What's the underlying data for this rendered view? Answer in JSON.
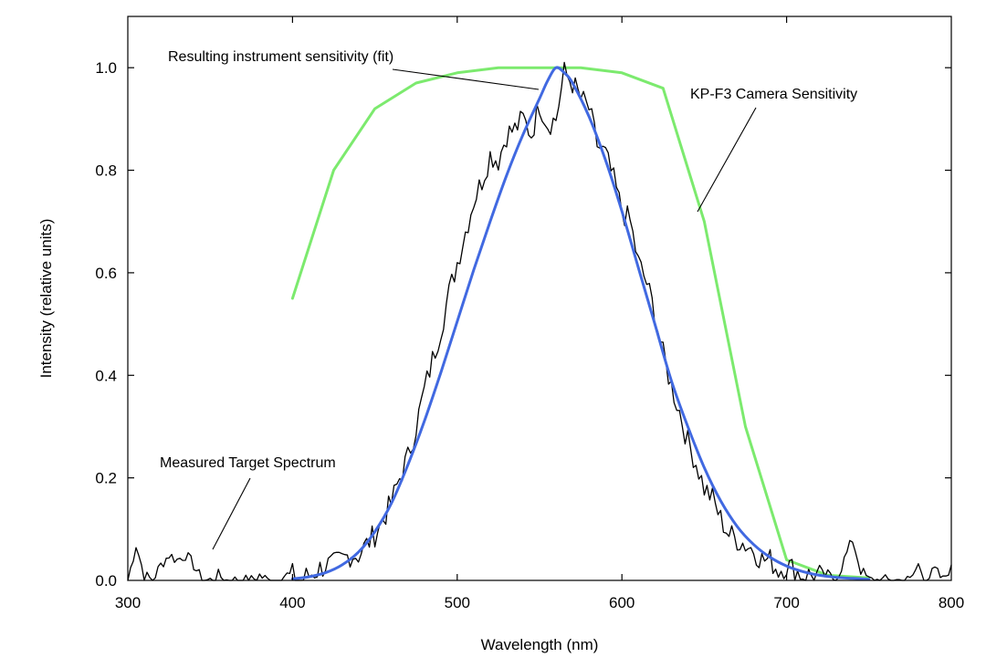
{
  "chart_data": {
    "type": "line",
    "title": "",
    "xlabel": "Wavelength (nm)",
    "ylabel": "Intensity (relative units)",
    "xlim": [
      300,
      800
    ],
    "ylim": [
      0,
      1.1
    ],
    "x_ticks": [
      300,
      400,
      500,
      600,
      700,
      800
    ],
    "x_tick_labels": [
      "300",
      "400",
      "500",
      "600",
      "700",
      "800"
    ],
    "y_ticks": [
      0,
      0.2,
      0.4,
      0.6,
      0.8,
      1.0
    ],
    "y_tick_labels": [
      "0.0",
      "0.2",
      "0.4",
      "0.6",
      "0.8",
      "1.0"
    ],
    "grid": false,
    "series": [
      {
        "name": "Measured Target Spectrum",
        "color": "#000000",
        "style": "noisy",
        "x": [
          300,
          305,
          310,
          315,
          320,
          325,
          330,
          335,
          340,
          345,
          350,
          355,
          360,
          365,
          370,
          375,
          380,
          385,
          390,
          395,
          400,
          405,
          410,
          415,
          420,
          425,
          430,
          435,
          440,
          445,
          450,
          455,
          460,
          465,
          470,
          475,
          480,
          485,
          490,
          495,
          500,
          505,
          510,
          515,
          520,
          525,
          530,
          535,
          540,
          545,
          550,
          555,
          560,
          565,
          570,
          575,
          580,
          585,
          590,
          595,
          600,
          605,
          610,
          615,
          620,
          625,
          630,
          635,
          640,
          645,
          650,
          655,
          660,
          665,
          670,
          675,
          680,
          685,
          690,
          695,
          700,
          705,
          710,
          715,
          720,
          725,
          730,
          735,
          740,
          745,
          750,
          755,
          760,
          765,
          770,
          775,
          780,
          785,
          790,
          795,
          800
        ],
        "values": [
          0,
          0.07,
          0.01,
          0,
          0.03,
          0.05,
          0.04,
          0.05,
          0.03,
          0,
          0,
          0.01,
          0,
          0,
          0,
          0,
          0.01,
          0,
          0,
          0.01,
          0.01,
          0,
          0.01,
          0.02,
          0.03,
          0.03,
          0.04,
          0.05,
          0.05,
          0.07,
          0.09,
          0.12,
          0.15,
          0.2,
          0.24,
          0.3,
          0.37,
          0.43,
          0.49,
          0.56,
          0.62,
          0.68,
          0.74,
          0.78,
          0.83,
          0.82,
          0.87,
          0.88,
          0.9,
          0.87,
          0.93,
          0.89,
          0.9,
          0.99,
          0.97,
          0.94,
          0.92,
          0.85,
          0.83,
          0.78,
          0.72,
          0.7,
          0.62,
          0.58,
          0.52,
          0.44,
          0.38,
          0.33,
          0.27,
          0.23,
          0.18,
          0.16,
          0.12,
          0.09,
          0.08,
          0.07,
          0.06,
          0.04,
          0.04,
          0.02,
          0.03,
          0.02,
          0.01,
          0.01,
          0.01,
          0.01,
          0,
          0.04,
          0.08,
          0.02,
          0,
          0,
          0,
          0,
          0,
          0,
          0.03,
          0,
          0.02,
          0,
          0.03
        ]
      },
      {
        "name": "Resulting instrument sensitivity (fit)",
        "color": "#4169e1",
        "style": "smooth",
        "x": [
          400,
          410,
          420,
          430,
          440,
          450,
          460,
          470,
          480,
          490,
          500,
          510,
          520,
          530,
          540,
          550,
          555,
          560,
          565,
          570,
          580,
          590,
          600,
          610,
          620,
          630,
          640,
          650,
          660,
          670,
          680,
          690,
          700,
          710,
          720,
          730,
          740,
          750
        ],
        "values": [
          0.003,
          0.007,
          0.015,
          0.03,
          0.055,
          0.095,
          0.15,
          0.225,
          0.31,
          0.405,
          0.505,
          0.605,
          0.7,
          0.79,
          0.87,
          0.94,
          0.975,
          1.0,
          0.99,
          0.97,
          0.905,
          0.82,
          0.72,
          0.61,
          0.5,
          0.39,
          0.3,
          0.22,
          0.155,
          0.105,
          0.07,
          0.045,
          0.028,
          0.017,
          0.01,
          0.006,
          0.004,
          0.002
        ]
      },
      {
        "name": "KP-F3 Camera Sensitivity",
        "color": "#7cea6e",
        "style": "polyline",
        "x": [
          400,
          425,
          450,
          475,
          500,
          525,
          550,
          575,
          600,
          625,
          650,
          675,
          700,
          725,
          750
        ],
        "values": [
          0.55,
          0.8,
          0.92,
          0.97,
          0.99,
          1.0,
          1.0,
          1.0,
          0.99,
          0.96,
          0.7,
          0.3,
          0.04,
          0.01,
          0.005
        ]
      }
    ],
    "annotations": [
      {
        "text": "Resulting instrument sensitivity (fit)",
        "target_series": "Resulting instrument sensitivity (fit)"
      },
      {
        "text": "KP-F3 Camera Sensitivity",
        "target_series": "KP-F3 Camera Sensitivity"
      },
      {
        "text": "Measured Target Spectrum",
        "target_series": "Measured Target Spectrum"
      }
    ]
  }
}
